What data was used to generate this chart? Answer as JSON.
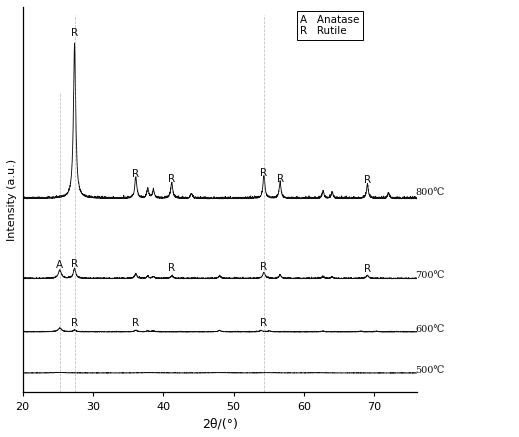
{
  "title": "",
  "xlabel": "2θ/(°)",
  "ylabel": "Intensity (a.u.)",
  "xlim": [
    20,
    76
  ],
  "ylim": [
    -0.05,
    1.55
  ],
  "temperatures": [
    "800℃",
    "700℃",
    "600℃",
    "500℃"
  ],
  "offsets": [
    0.75,
    0.42,
    0.2,
    0.03
  ],
  "background_color": "#ffffff",
  "line_color": "#111111",
  "legend_items": [
    [
      "A",
      "Anatase"
    ],
    [
      "R",
      "Rutile"
    ]
  ],
  "xticks": [
    20,
    30,
    40,
    50,
    60,
    70
  ],
  "noise_seed": 42,
  "dashed_lines": [
    27.4,
    25.3,
    54.3
  ]
}
